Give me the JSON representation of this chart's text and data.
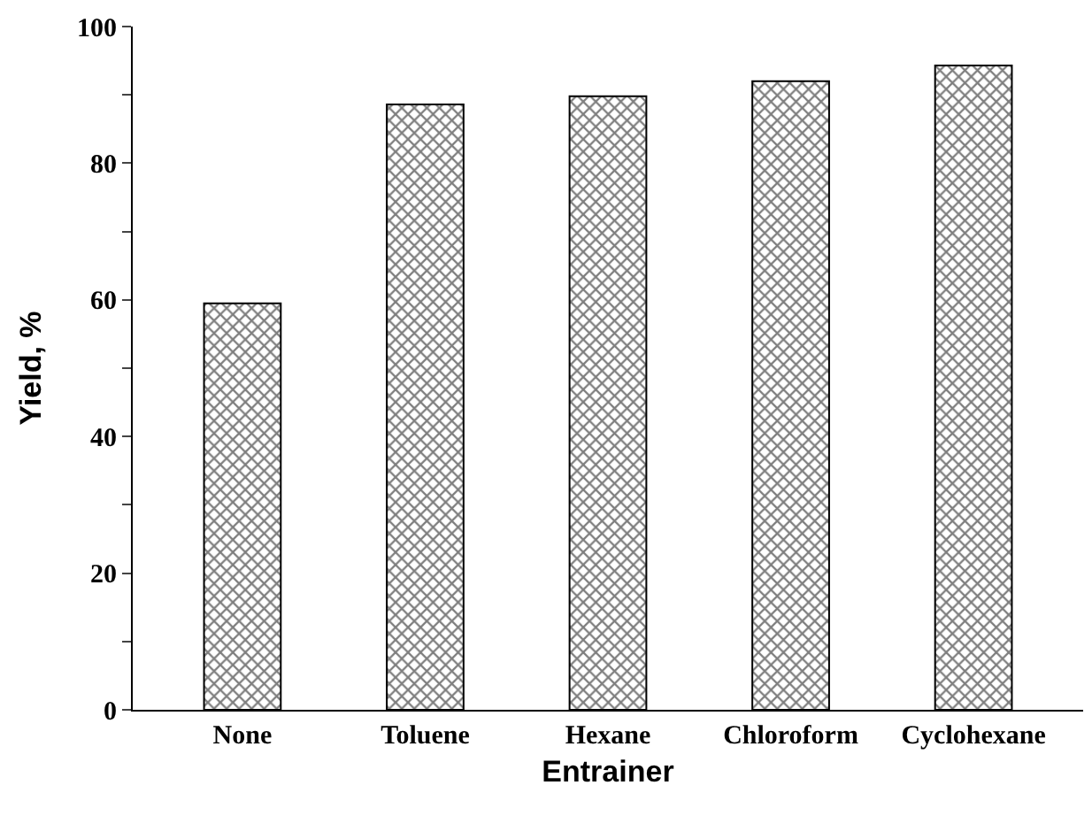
{
  "chart_data": {
    "type": "bar",
    "xlabel": "Entrainer",
    "ylabel": "Yield, %",
    "categories": [
      "None",
      "Toluene",
      "Hexane",
      "Chloroform",
      "Cyclohexane"
    ],
    "values": [
      59.5,
      88.6,
      89.8,
      92.0,
      94.3
    ],
    "color": "#000000",
    "ylim": [
      0,
      100
    ],
    "yticks": [
      0,
      {
        "value": 10,
        "label": null
      },
      20,
      {
        "value": 30,
        "label": null
      },
      40,
      {
        "value": 50,
        "label": null
      },
      60,
      {
        "value": 70,
        "label": null
      },
      80,
      {
        "value": 90,
        "label": null
      },
      100
    ]
  }
}
